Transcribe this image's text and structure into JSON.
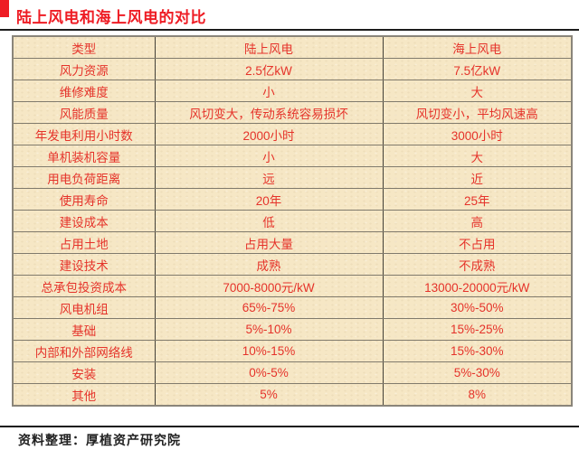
{
  "page": {
    "title": "陆上风电和海上风电的对比",
    "footer": "资料整理：厚植资产研究院"
  },
  "colors": {
    "title_red": "#ee1c24",
    "table_text_red": "#e5332a",
    "table_background": "#f6e7c5",
    "rule_black": "#1c1c1c"
  },
  "icons": {
    "title_bullet": "red-square-bullet"
  },
  "table": {
    "columns": [
      "类型",
      "陆上风电",
      "海上风电"
    ],
    "rows": [
      {
        "label": "风力资源",
        "onshore": "2.5亿kW",
        "offshore": "7.5亿kW"
      },
      {
        "label": "维修难度",
        "onshore": "小",
        "offshore": "大"
      },
      {
        "label": "风能质量",
        "onshore": "风切变大，传动系统容易损坏",
        "offshore": "风切变小，平均风速高"
      },
      {
        "label": "年发电利用小时数",
        "onshore": "2000小时",
        "offshore": "3000小时"
      },
      {
        "label": "单机装机容量",
        "onshore": "小",
        "offshore": "大"
      },
      {
        "label": "用电负荷距离",
        "onshore": "远",
        "offshore": "近"
      },
      {
        "label": "使用寿命",
        "onshore": "20年",
        "offshore": "25年"
      },
      {
        "label": "建设成本",
        "onshore": "低",
        "offshore": "高"
      },
      {
        "label": "占用土地",
        "onshore": "占用大量",
        "offshore": "不占用"
      },
      {
        "label": "建设技术",
        "onshore": "成熟",
        "offshore": "不成熟"
      },
      {
        "label": "总承包投资成本",
        "onshore": "7000-8000元/kW",
        "offshore": "13000-20000元/kW"
      },
      {
        "label": "风电机组",
        "onshore": "65%-75%",
        "offshore": "30%-50%"
      },
      {
        "label": "基础",
        "onshore": "5%-10%",
        "offshore": "15%-25%"
      },
      {
        "label": "内部和外部网络线",
        "onshore": "10%-15%",
        "offshore": "15%-30%"
      },
      {
        "label": "安装",
        "onshore": "0%-5%",
        "offshore": "5%-30%"
      },
      {
        "label": "其他",
        "onshore": "5%",
        "offshore": "8%"
      }
    ]
  }
}
